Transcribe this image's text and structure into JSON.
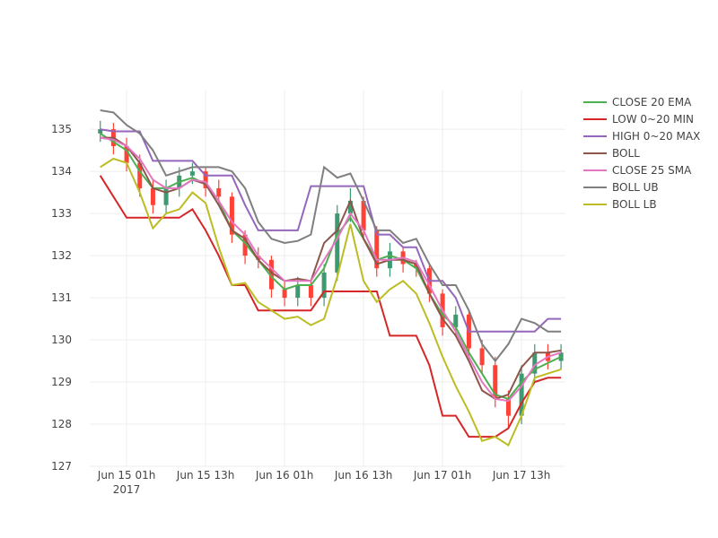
{
  "chart_data": {
    "type": "candlestick",
    "x": [
      "2017-06-14 21:00",
      "2017-06-14 23:00",
      "2017-06-15 01:00",
      "2017-06-15 03:00",
      "2017-06-15 05:00",
      "2017-06-15 07:00",
      "2017-06-15 09:00",
      "2017-06-15 11:00",
      "2017-06-15 13:00",
      "2017-06-15 15:00",
      "2017-06-15 17:00",
      "2017-06-15 19:00",
      "2017-06-15 21:00",
      "2017-06-15 23:00",
      "2017-06-16 01:00",
      "2017-06-16 03:00",
      "2017-06-16 05:00",
      "2017-06-16 07:00",
      "2017-06-16 09:00",
      "2017-06-16 11:00",
      "2017-06-16 13:00",
      "2017-06-16 15:00",
      "2017-06-16 17:00",
      "2017-06-16 19:00",
      "2017-06-16 21:00",
      "2017-06-16 23:00",
      "2017-06-17 01:00",
      "2017-06-17 03:00",
      "2017-06-17 05:00",
      "2017-06-17 07:00",
      "2017-06-17 09:00",
      "2017-06-17 11:00",
      "2017-06-17 13:00",
      "2017-06-17 15:00",
      "2017-06-17 17:00",
      "2017-06-17 19:00"
    ],
    "open": [
      134.9,
      135.0,
      134.6,
      134.2,
      133.6,
      133.2,
      133.6,
      133.9,
      134.0,
      133.6,
      133.4,
      132.5,
      132.0,
      131.9,
      131.2,
      131.0,
      131.3,
      131.0,
      131.6,
      133.0,
      133.3,
      132.6,
      131.7,
      132.1,
      131.8,
      131.7,
      131.1,
      130.3,
      130.6,
      129.8,
      129.4,
      128.6,
      128.2,
      129.2,
      129.7,
      129.5
    ],
    "high": [
      135.2,
      135.15,
      134.8,
      134.4,
      133.8,
      133.8,
      134.1,
      134.2,
      134.1,
      133.8,
      133.5,
      132.6,
      132.2,
      132.0,
      131.4,
      131.5,
      131.4,
      131.8,
      133.2,
      133.6,
      133.4,
      132.7,
      132.3,
      132.2,
      131.9,
      131.8,
      131.2,
      130.8,
      130.7,
      130.0,
      129.6,
      128.8,
      129.4,
      129.9,
      129.9,
      129.9
    ],
    "low": [
      134.7,
      134.4,
      134.0,
      133.4,
      133.0,
      133.0,
      133.4,
      133.7,
      133.4,
      133.2,
      132.3,
      131.8,
      131.7,
      131.0,
      130.8,
      130.8,
      130.8,
      130.8,
      131.4,
      132.8,
      132.4,
      131.5,
      131.5,
      131.6,
      131.5,
      130.9,
      130.1,
      130.1,
      129.6,
      129.2,
      128.4,
      127.9,
      128.0,
      129.0,
      129.3,
      129.3
    ],
    "close": [
      135.0,
      134.6,
      134.2,
      133.6,
      133.2,
      133.6,
      133.9,
      134.0,
      133.6,
      133.4,
      132.5,
      132.0,
      131.9,
      131.2,
      131.0,
      131.3,
      131.0,
      131.6,
      133.0,
      133.3,
      132.6,
      131.7,
      132.1,
      131.8,
      131.7,
      131.1,
      130.3,
      130.6,
      129.8,
      129.4,
      128.6,
      128.2,
      129.2,
      129.7,
      129.5,
      129.7
    ],
    "increasing_color": "#3d9970",
    "decreasing_color": "#ff4136",
    "series": [
      {
        "name": "CLOSE 20 EMA",
        "color": "#4caf50",
        "values": [
          134.9,
          134.7,
          134.5,
          134.0,
          133.6,
          133.6,
          133.75,
          133.85,
          133.7,
          133.3,
          132.6,
          132.3,
          131.9,
          131.5,
          131.2,
          131.3,
          131.3,
          131.7,
          132.5,
          132.9,
          132.4,
          131.9,
          132.0,
          131.9,
          131.7,
          131.1,
          130.6,
          130.3,
          129.7,
          129.2,
          128.7,
          128.6,
          129.0,
          129.3,
          129.45,
          129.6
        ]
      },
      {
        "name": "LOW 0~20 MIN",
        "color": "#d62728",
        "values": [
          133.9,
          133.4,
          132.9,
          132.9,
          132.9,
          132.9,
          132.9,
          133.1,
          132.6,
          132.0,
          131.3,
          131.3,
          130.7,
          130.7,
          130.7,
          130.7,
          130.7,
          131.15,
          131.15,
          131.15,
          131.15,
          131.15,
          130.1,
          130.1,
          130.1,
          129.4,
          128.2,
          128.2,
          127.7,
          127.7,
          127.7,
          127.9,
          128.5,
          129.0,
          129.1,
          129.1
        ]
      },
      {
        "name": "HIGH 0~20 MAX",
        "color": "#9467bd",
        "values": [
          135.0,
          134.95,
          134.95,
          134.95,
          134.25,
          134.25,
          134.25,
          134.25,
          133.9,
          133.9,
          133.9,
          133.2,
          132.6,
          132.6,
          132.6,
          132.6,
          133.65,
          133.65,
          133.65,
          133.65,
          133.65,
          132.5,
          132.5,
          132.2,
          132.2,
          131.4,
          131.4,
          131.0,
          130.2,
          130.2,
          130.2,
          130.2,
          130.2,
          130.2,
          130.5,
          130.5
        ]
      },
      {
        "name": "BOLL",
        "color": "#8c564b",
        "values": [
          134.8,
          134.8,
          134.6,
          134.2,
          133.6,
          133.5,
          133.6,
          133.8,
          133.7,
          133.2,
          132.6,
          132.4,
          131.9,
          131.6,
          131.4,
          131.45,
          131.4,
          132.3,
          132.6,
          133.3,
          132.4,
          131.8,
          131.9,
          131.9,
          131.8,
          131.1,
          130.5,
          130.1,
          129.5,
          128.8,
          128.6,
          128.7,
          129.35,
          129.7,
          129.7,
          129.75
        ]
      },
      {
        "name": "CLOSE 25 SMA",
        "color": "#e377c2",
        "values": [
          134.8,
          134.75,
          134.6,
          134.3,
          133.8,
          133.6,
          133.6,
          133.8,
          133.75,
          133.3,
          132.8,
          132.5,
          132.0,
          131.7,
          131.4,
          131.4,
          131.4,
          131.9,
          132.4,
          133.0,
          132.6,
          131.9,
          131.9,
          131.95,
          131.85,
          131.3,
          130.7,
          130.2,
          129.6,
          129.0,
          128.6,
          128.55,
          128.9,
          129.4,
          129.6,
          129.7
        ]
      },
      {
        "name": "BOLL UB",
        "color": "#7f7f7f",
        "values": [
          135.45,
          135.4,
          135.1,
          134.9,
          134.5,
          133.9,
          134.0,
          134.1,
          134.1,
          134.1,
          134.0,
          133.6,
          132.8,
          132.4,
          132.3,
          132.35,
          132.5,
          134.1,
          133.85,
          133.95,
          133.3,
          132.6,
          132.6,
          132.3,
          132.4,
          131.8,
          131.3,
          131.3,
          130.7,
          129.9,
          129.5,
          129.9,
          130.5,
          130.4,
          130.2,
          130.2
        ]
      },
      {
        "name": "BOLL LB",
        "color": "#bcbd22",
        "values": [
          134.1,
          134.3,
          134.2,
          133.5,
          132.65,
          133.0,
          133.1,
          133.5,
          133.25,
          132.2,
          131.3,
          131.35,
          130.9,
          130.7,
          130.5,
          130.55,
          130.35,
          130.5,
          131.5,
          132.75,
          131.4,
          130.9,
          131.2,
          131.4,
          131.1,
          130.4,
          129.6,
          128.9,
          128.3,
          127.6,
          127.7,
          127.5,
          128.2,
          129.1,
          129.2,
          129.3
        ]
      }
    ],
    "xlim": [
      "2017-06-14 19:24",
      "2017-06-17 19:40"
    ],
    "xticks": [
      {
        "value": "2017-06-15 01:00",
        "label": "Jun 15 01h\n2017"
      },
      {
        "value": "2017-06-15 13:00",
        "label": "Jun 15 13h"
      },
      {
        "value": "2017-06-16 01:00",
        "label": "Jun 16 01h"
      },
      {
        "value": "2017-06-16 13:00",
        "label": "Jun 16 13h"
      },
      {
        "value": "2017-06-17 01:00",
        "label": "Jun 17 01h"
      },
      {
        "value": "2017-06-17 13:00",
        "label": "Jun 17 13h"
      }
    ],
    "ylim": [
      127,
      135.94
    ],
    "yticks": [
      127,
      128,
      129,
      130,
      131,
      132,
      133,
      134,
      135
    ],
    "grid": true
  }
}
